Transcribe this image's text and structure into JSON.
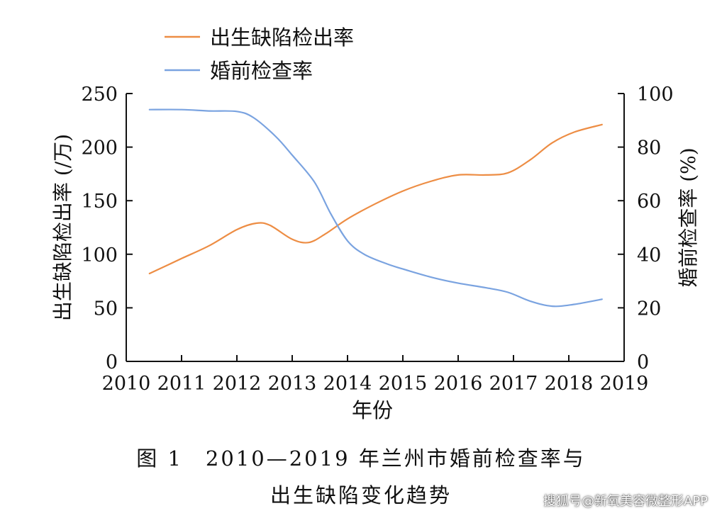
{
  "chart_data": {
    "type": "line",
    "xlabel": "年份",
    "xlim": [
      2010,
      2019
    ],
    "x_ticks": [
      "2010",
      "2011",
      "2012",
      "2013",
      "2014",
      "2015",
      "2016",
      "2017",
      "2018",
      "2019"
    ],
    "y_left": {
      "label": "出生缺陷检出率 (/万)",
      "lim": [
        0,
        250
      ],
      "ticks": [
        "0",
        "50",
        "100",
        "150",
        "200",
        "250"
      ]
    },
    "y_right": {
      "label": "婚前检查率 (%)",
      "lim": [
        0,
        100
      ],
      "ticks": [
        "0",
        "20",
        "40",
        "60",
        "80",
        "100"
      ]
    },
    "grid": false,
    "legend_position": "top-left",
    "series": [
      {
        "name": "出生缺陷检出率",
        "axis": "left",
        "color": "#ED8D44",
        "x": [
          2010.42,
          2011,
          2011.5,
          2012,
          2012.35,
          2012.6,
          2013,
          2013.3,
          2013.6,
          2014,
          2014.5,
          2015,
          2015.5,
          2016,
          2016.5,
          2016.9,
          2017.3,
          2017.7,
          2018.1,
          2018.6
        ],
        "values": [
          82,
          96,
          108,
          123,
          129,
          127,
          114,
          111,
          119,
          133,
          147,
          159,
          168,
          174,
          174,
          176,
          188,
          204,
          214,
          221
        ]
      },
      {
        "name": "婚前检查率",
        "axis": "right",
        "color": "#7AA3E0",
        "x": [
          2010.42,
          2011,
          2011.5,
          2012,
          2012.3,
          2012.7,
          2013,
          2013.4,
          2013.7,
          2014,
          2014.3,
          2014.7,
          2015,
          2015.5,
          2016,
          2016.5,
          2016.9,
          2017.3,
          2017.7,
          2018.1,
          2018.6
        ],
        "values": [
          94,
          94,
          93.5,
          93.3,
          91,
          84,
          77,
          67,
          55,
          45,
          40,
          36.5,
          34.5,
          31.5,
          29.2,
          27.5,
          25.8,
          22.5,
          20.6,
          21.3,
          23.2
        ]
      }
    ],
    "figure_caption": [
      "图 1　2010—2019 年兰州市婚前检查率与",
      "出生缺陷变化趋势"
    ],
    "watermark": "搜狐号@新氧美容微整形APP"
  }
}
